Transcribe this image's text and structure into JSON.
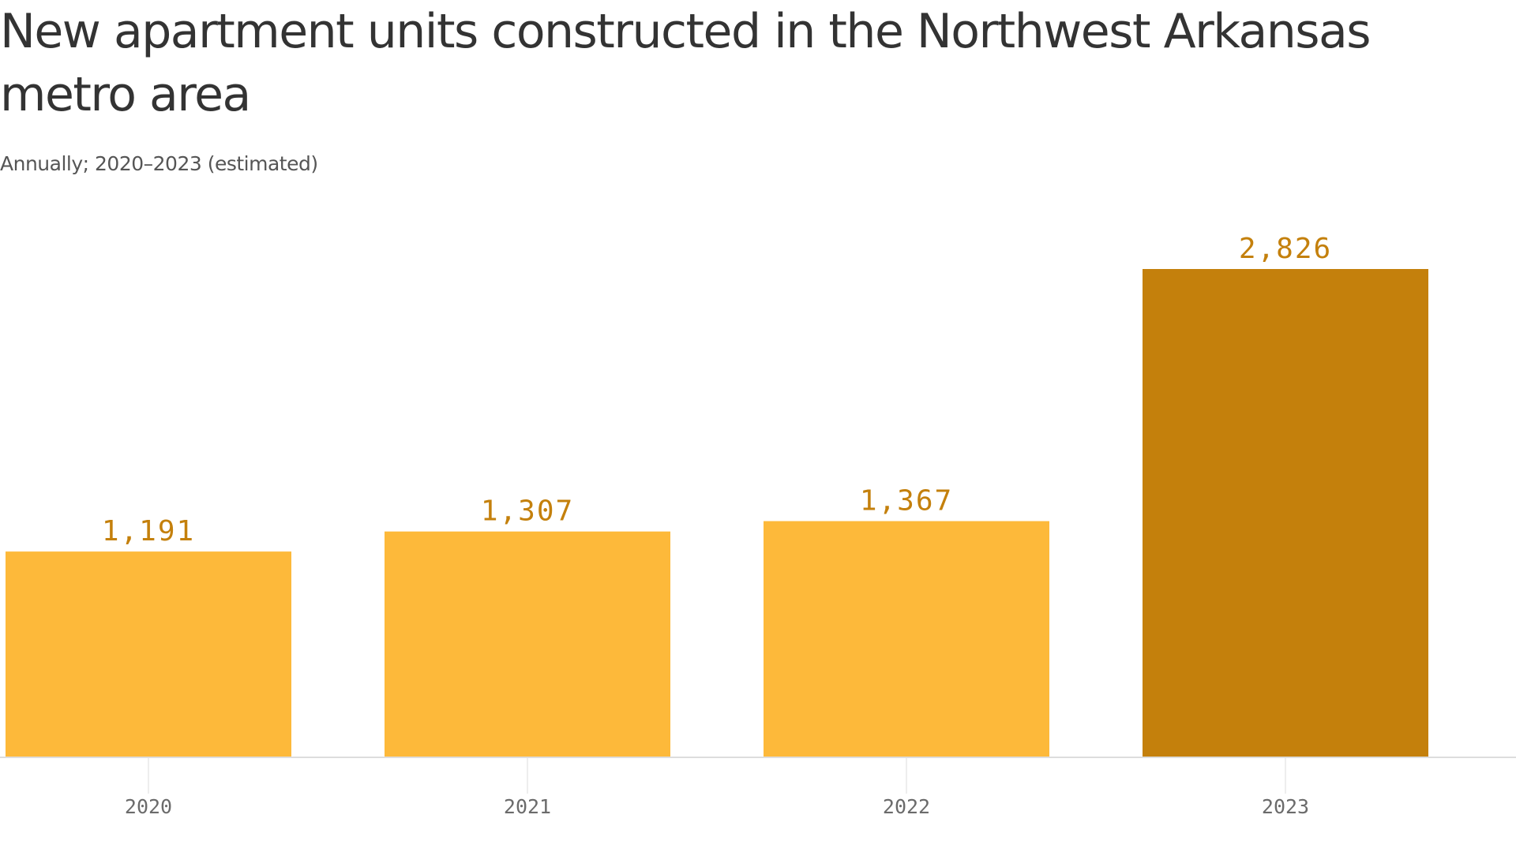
{
  "chart_data": {
    "type": "bar",
    "title": "New apartment units constructed in the Northwest Arkansas metro area",
    "subtitle": "Annually; 2020–2023 (estimated)",
    "categories": [
      "2020",
      "2021",
      "2022",
      "2023"
    ],
    "values": [
      1191,
      1307,
      1367,
      2826
    ],
    "value_labels": [
      "1,191",
      "1,307",
      "1,367",
      "2,826"
    ],
    "xlabel": "",
    "ylabel": "",
    "ylim": [
      0,
      2826
    ],
    "grid": false,
    "legend": "none",
    "colors": {
      "bar": "#FDB93A",
      "bar_highlight": "#C4800C",
      "label": "#C4800C",
      "axis": "#DDDDDD",
      "tick_text": "#6B6B6B"
    },
    "highlight_index": 3
  }
}
